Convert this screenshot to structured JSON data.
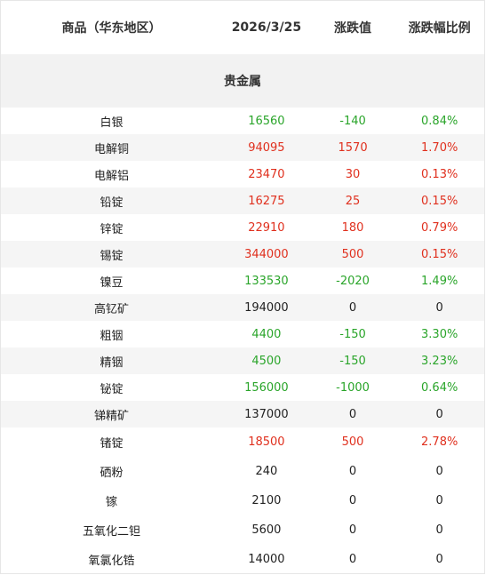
{
  "header": {
    "col_name": "商品（华东地区）",
    "col_price": "2026/3/25",
    "col_change": "涨跌值",
    "col_pct": "涨跌幅比例"
  },
  "section_title": "贵金属",
  "colors": {
    "up": "#e0301e",
    "down": "#2aa52a",
    "flat": "#222222"
  },
  "rows": [
    {
      "name": "白银",
      "price": "16560",
      "change": "-140",
      "pct": "0.84%",
      "trend": "down"
    },
    {
      "name": "电解铜",
      "price": "94095",
      "change": "1570",
      "pct": "1.70%",
      "trend": "up"
    },
    {
      "name": "电解铝",
      "price": "23470",
      "change": "30",
      "pct": "0.13%",
      "trend": "up"
    },
    {
      "name": "铅锭",
      "price": "16275",
      "change": "25",
      "pct": "0.15%",
      "trend": "up"
    },
    {
      "name": "锌锭",
      "price": "22910",
      "change": "180",
      "pct": "0.79%",
      "trend": "up"
    },
    {
      "name": "锡锭",
      "price": "344000",
      "change": "500",
      "pct": "0.15%",
      "trend": "up"
    },
    {
      "name": "镍豆",
      "price": "133530",
      "change": "-2020",
      "pct": "1.49%",
      "trend": "down"
    },
    {
      "name": "高钇矿",
      "price": "194000",
      "change": "0",
      "pct": "0",
      "trend": "flat"
    },
    {
      "name": "粗铟",
      "price": "4400",
      "change": "-150",
      "pct": "3.30%",
      "trend": "down"
    },
    {
      "name": "精铟",
      "price": "4500",
      "change": "-150",
      "pct": "3.23%",
      "trend": "down"
    },
    {
      "name": "铋锭",
      "price": "156000",
      "change": "-1000",
      "pct": "0.64%",
      "trend": "down"
    },
    {
      "name": "锑精矿",
      "price": "137000",
      "change": "0",
      "pct": "0",
      "trend": "flat"
    },
    {
      "name": "锗锭",
      "price": "18500",
      "change": "500",
      "pct": "2.78%",
      "trend": "up"
    },
    {
      "name": "硒粉",
      "price": "240",
      "change": "0",
      "pct": "0",
      "trend": "flat"
    },
    {
      "name": "镓",
      "price": "2100",
      "change": "0",
      "pct": "0",
      "trend": "flat"
    },
    {
      "name": "五氧化二钽",
      "price": "5600",
      "change": "0",
      "pct": "0",
      "trend": "flat"
    },
    {
      "name": "氧氯化锆",
      "price": "14000",
      "change": "0",
      "pct": "0",
      "trend": "flat"
    }
  ]
}
